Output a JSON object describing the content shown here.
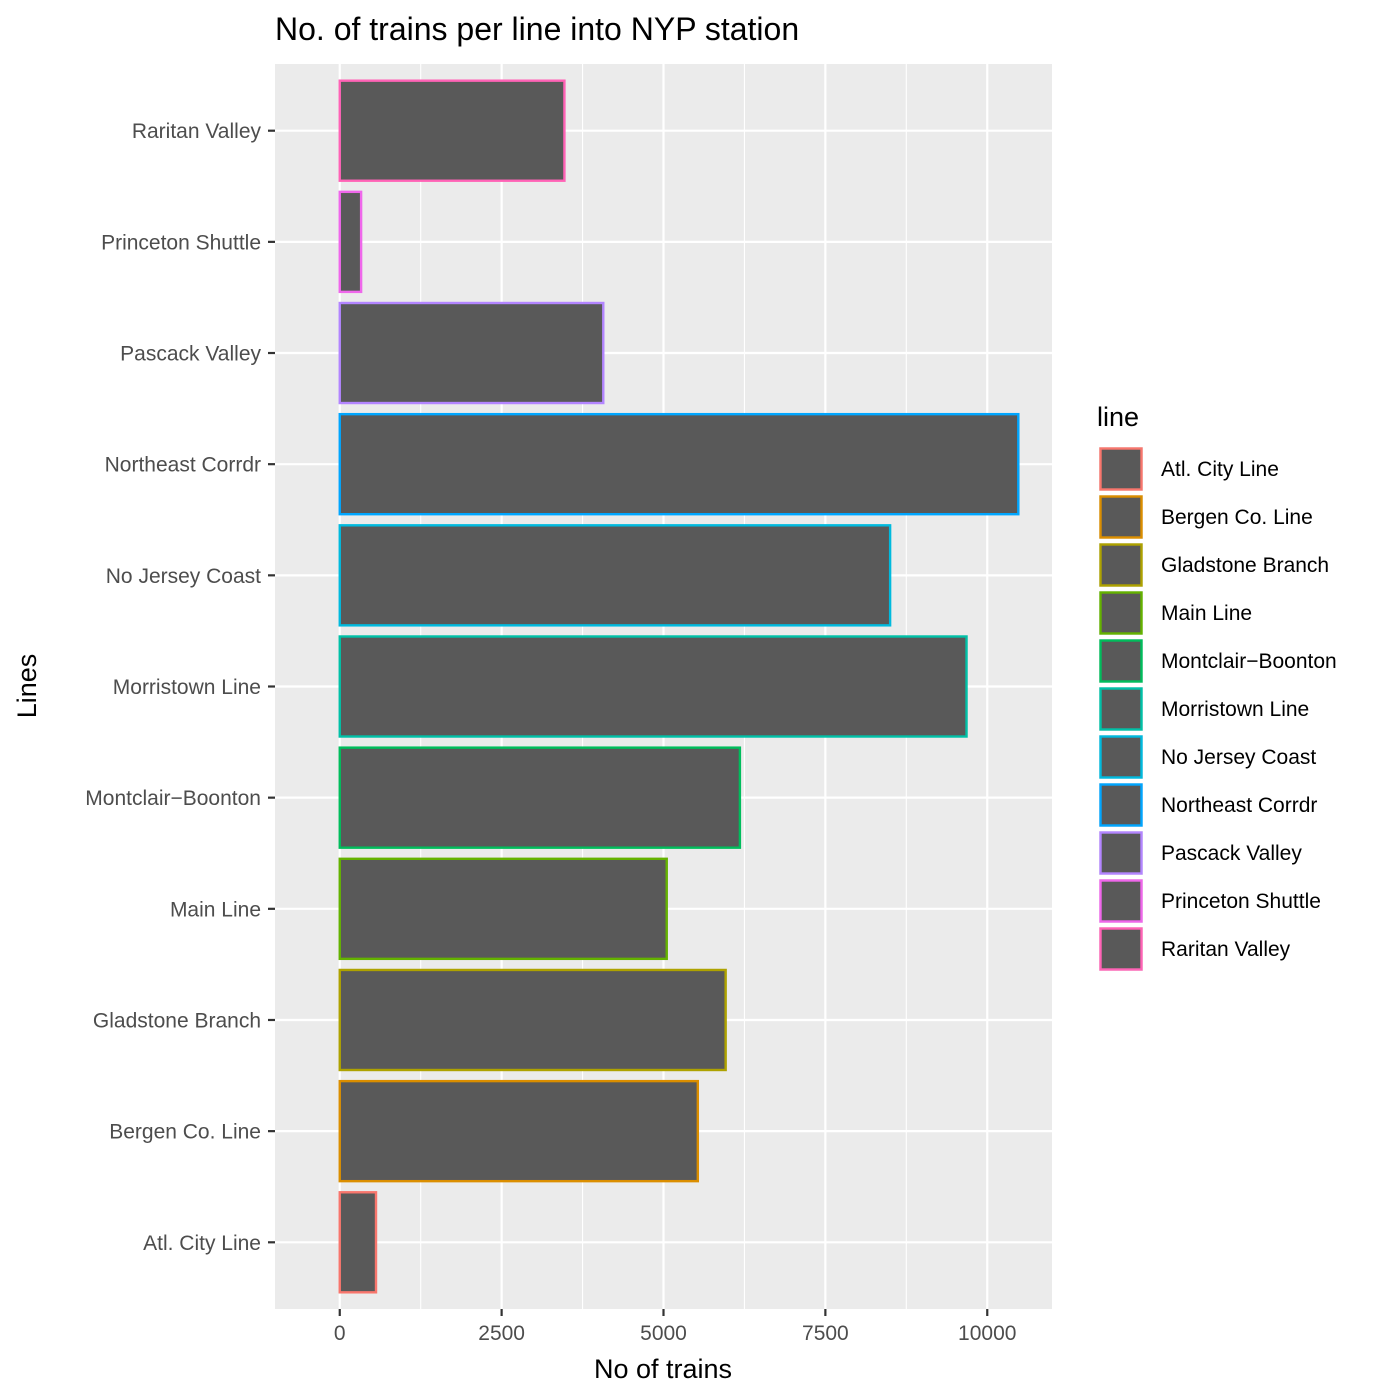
{
  "chart_data": {
    "type": "bar",
    "orientation": "horizontal",
    "title": "No. of trains per line into NYP station",
    "xlabel": "No of trains",
    "ylabel": "Lines",
    "xlim": [
      -1000,
      11000
    ],
    "xticks": [
      0,
      2500,
      5000,
      7500,
      10000
    ],
    "xtick_labels": [
      "0",
      "2500",
      "5000",
      "7500",
      "10000"
    ],
    "categories": [
      "Atl. City Line",
      "Bergen Co. Line ",
      "Gladstone Branch",
      "Main Line",
      "Montclair−Boonton",
      "Morristown Line",
      "No Jersey Coast",
      "Northeast Corrdr",
      "Pascack Valley",
      "Princeton Shuttle",
      "Raritan Valley"
    ],
    "values": [
      560,
      5530,
      5960,
      5050,
      6180,
      9680,
      8500,
      10480,
      4070,
      330,
      3470
    ],
    "bar_fill": "#595959",
    "outline_colors": [
      "#F8766D",
      "#DB8E00",
      "#AEA200",
      "#64B200",
      "#00BD5C",
      "#00C1A7",
      "#00BADE",
      "#00A6FF",
      "#B385FF",
      "#EF67EB",
      "#FF63B6"
    ],
    "panel_background": "#EBEBEB",
    "grid": true,
    "legend": {
      "title": "line",
      "position": "right",
      "entries": [
        "Atl. City Line",
        "Bergen Co. Line",
        "Gladstone Branch",
        "Main Line",
        "Montclair−Boonton",
        "Morristown Line",
        "No Jersey Coast",
        "Northeast Corrdr",
        "Pascack Valley",
        "Princeton Shuttle",
        "Raritan Valley"
      ]
    }
  }
}
